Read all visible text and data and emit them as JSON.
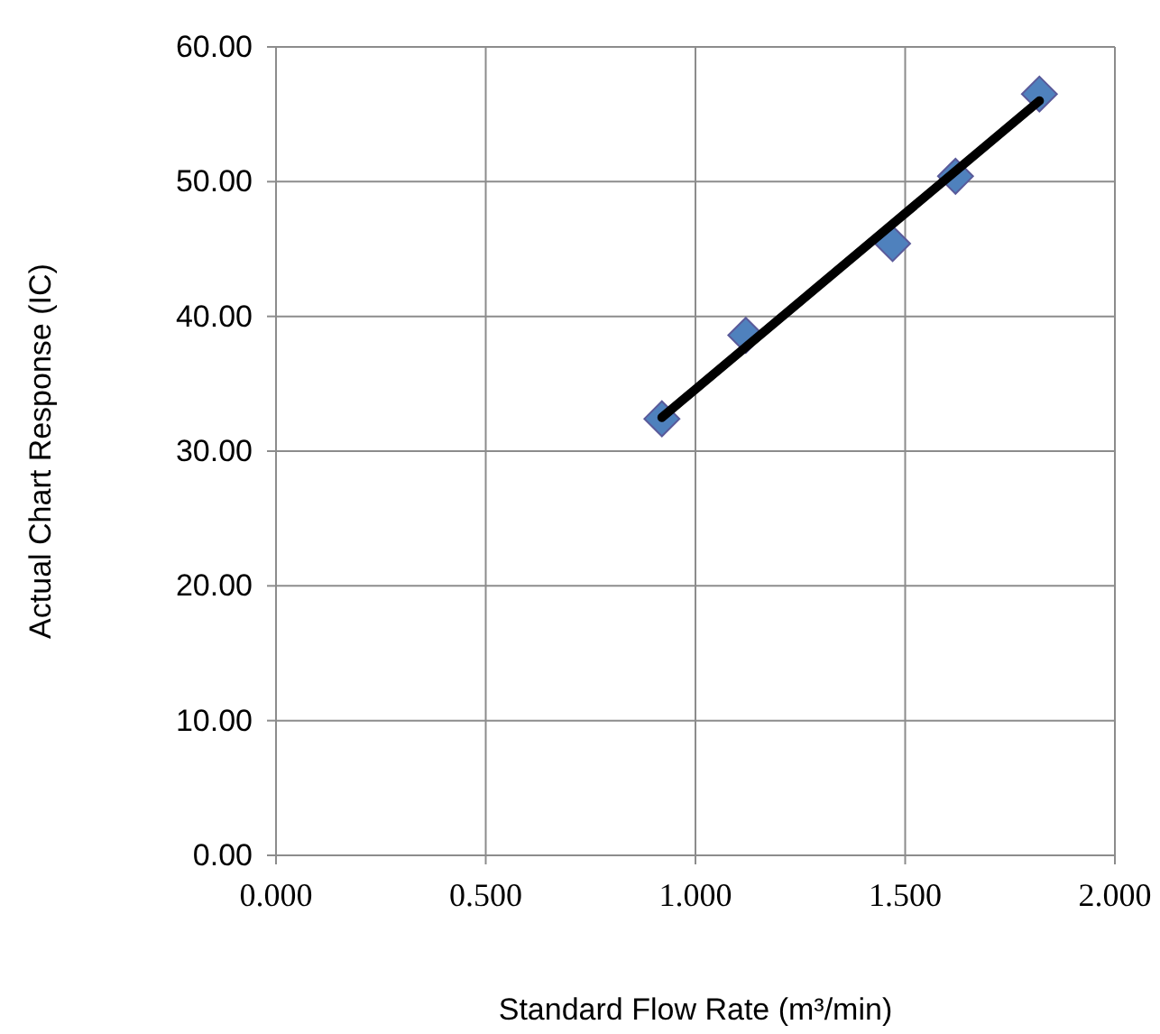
{
  "chart_data": {
    "type": "scatter",
    "xlabel": "Standard Flow Rate (m³/min)",
    "ylabel": "Actual Chart Response (IC)",
    "xlim": [
      0,
      2
    ],
    "xticks": [
      {
        "value": 0,
        "label": "0.000"
      },
      {
        "value": 0.5,
        "label": "0.500"
      },
      {
        "value": 1,
        "label": "1.000"
      },
      {
        "value": 1.5,
        "label": "1.500"
      },
      {
        "value": 2,
        "label": "2.000"
      }
    ],
    "ylim": [
      0,
      60
    ],
    "yticks": [
      {
        "value": 0,
        "label": "0.00"
      },
      {
        "value": 10,
        "label": "10.00"
      },
      {
        "value": 20,
        "label": "20.00"
      },
      {
        "value": 30,
        "label": "30.00"
      },
      {
        "value": 40,
        "label": "40.00"
      },
      {
        "value": 50,
        "label": "50.00"
      },
      {
        "value": 60,
        "label": "60.00"
      }
    ],
    "grid": true,
    "series": [
      {
        "marker": "diamond",
        "color": "#4f81bd",
        "x": [
          0.92,
          1.12,
          1.47,
          1.62,
          1.82
        ],
        "values": [
          32.4,
          38.6,
          45.4,
          50.4,
          56.5
        ]
      },
      {
        "type": "line",
        "color": "#000000",
        "x": [
          0.92,
          1.82
        ],
        "values": [
          32.5,
          56.0
        ]
      }
    ]
  }
}
